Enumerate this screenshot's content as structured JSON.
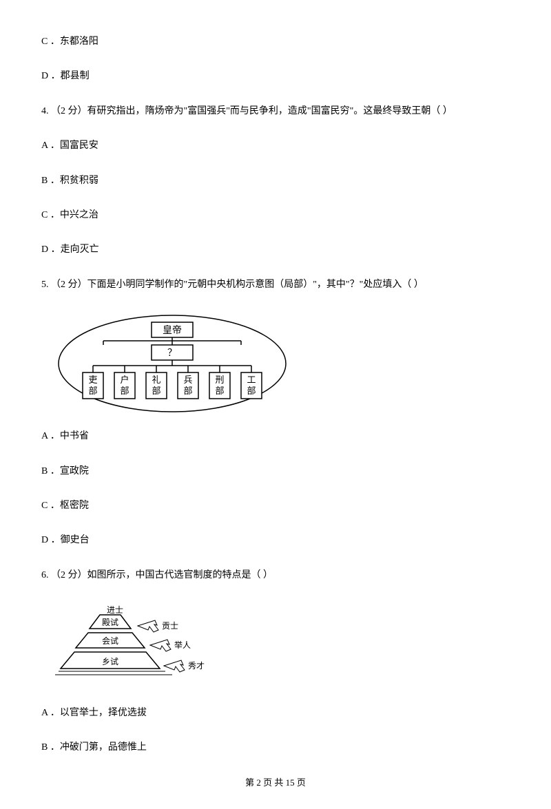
{
  "q3": {
    "optC": "C ．东都洛阳",
    "optD": "D ．郡县制"
  },
  "q4": {
    "stem": "4.  （2 分）有研究指出，隋炀帝为\"富国强兵\"而与民争利，造成\"国富民穷\"。这最终导致王朝（     ）",
    "optA": "A ．国富民安",
    "optB": "B ．积贫积弱",
    "optC": "C ．中兴之治",
    "optD": "D ．走向灭亡"
  },
  "q5": {
    "stem": "5.  （2 分）下面是小明同学制作的\"元朝中央机构示意图（局部）\"，其中\"？\"处应填入（     ）",
    "diagram": {
      "colors": {
        "stroke": "#000000",
        "fill": "#ffffff"
      },
      "top": "皇帝",
      "mid": "？",
      "leaves": [
        "吏部",
        "户部",
        "礼部",
        "兵部",
        "刑部",
        "工部"
      ]
    },
    "optA": "A ．中书省",
    "optB": "B ．宣政院",
    "optC": "C ．枢密院",
    "optD": "D ．御史台"
  },
  "q6": {
    "stem": "6.  （2 分）如图所示，中国古代选官制度的特点是（     ）",
    "diagram": {
      "colors": {
        "stroke": "#000000",
        "fill": "#ffffff"
      },
      "levels": [
        "进士",
        "殿试",
        "会试",
        "乡试"
      ],
      "arrows": [
        "贡士",
        "举人",
        "秀才"
      ]
    },
    "optA": "A ．以官举士，择优选拔",
    "optB": "B ．冲破门第，品德惟上"
  },
  "footer": "第 2 页 共 15 页"
}
